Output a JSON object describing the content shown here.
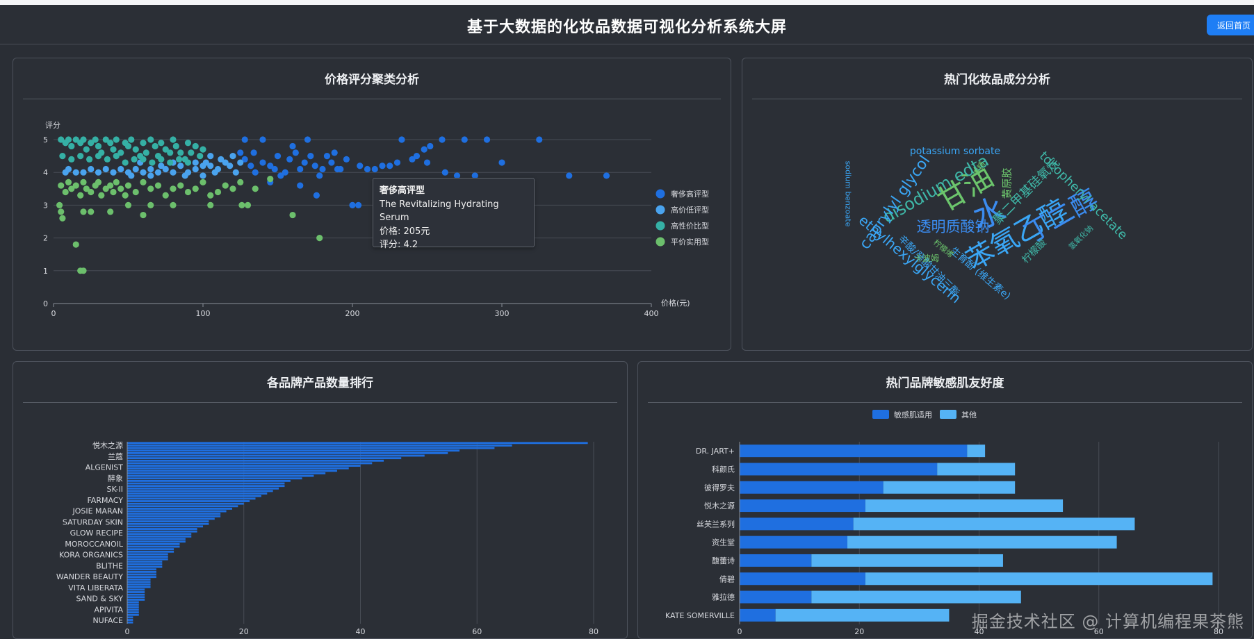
{
  "header": {
    "title": "基于大数据的化妆品数据可视化分析系统大屏",
    "home_button": "返回首页"
  },
  "panels": {
    "scatter": {
      "title": "价格评分聚类分析"
    },
    "wordcloud": {
      "title": "热门化妆品成分分析"
    },
    "brand_count": {
      "title": "各品牌产品数量排行"
    },
    "sensitive": {
      "title": "热门品牌敏感肌友好度"
    }
  },
  "tooltip": {
    "cluster": "奢侈高评型",
    "product": "The Revitalizing Hydrating Serum",
    "price": "价格: 205元",
    "rating": "评分: 4.2"
  },
  "watermark": "掘金技术社区 @ 计算机编程果茶熊",
  "wordcloud": [
    {
      "text": "水",
      "size": 46,
      "color": "#3b8cf0",
      "rotate": -20
    },
    {
      "text": "苯氧乙醇",
      "size": 40,
      "color": "#3aa6f5",
      "rotate": -30
    },
    {
      "text": "甘油",
      "size": 42,
      "color": "#6cc56c",
      "rotate": -30
    },
    {
      "text": "丁二醇",
      "size": 38,
      "color": "#3b8cf0",
      "rotate": -30
    },
    {
      "text": "disodium edta",
      "size": 24,
      "color": "#3fb8a8",
      "rotate": -30
    },
    {
      "text": "caprylyl glycol",
      "size": 22,
      "color": "#3aa6f5",
      "rotate": -55
    },
    {
      "text": "透明质酸钠",
      "size": 21,
      "color": "#3b8cf0",
      "rotate": 0
    },
    {
      "text": "ethylhexylglycerin",
      "size": 20,
      "color": "#3aa6f5",
      "rotate": 40
    },
    {
      "text": "聚二甲基硅氧烷",
      "size": 18,
      "color": "#3fb8a8",
      "rotate": -45
    },
    {
      "text": "tocopheryl acetate",
      "size": 18,
      "color": "#3fb8a8",
      "rotate": 45
    },
    {
      "text": "potassium sorbate",
      "size": 14,
      "color": "#3aa6f5",
      "rotate": 0
    },
    {
      "text": "生育酚 (维生素e)",
      "size": 14,
      "color": "#3aa6f5",
      "rotate": 40
    },
    {
      "text": "辛酸/癸酸甘油三酯",
      "size": 14,
      "color": "#3aa6f5",
      "rotate": 45
    },
    {
      "text": "黄原胶",
      "size": 15,
      "color": "#6cc56c",
      "rotate": -90
    },
    {
      "text": "柠檬酸",
      "size": 14,
      "color": "#3fb8a8",
      "rotate": -45
    },
    {
      "text": "sodium benzoate",
      "size": 11,
      "color": "#3aa6f5",
      "rotate": 90
    },
    {
      "text": "卡波姆",
      "size": 12,
      "color": "#6cc56c",
      "rotate": 0
    },
    {
      "text": "香精",
      "size": 11,
      "color": "#6cc56c",
      "rotate": -60
    },
    {
      "text": "氢氧化钠",
      "size": 11,
      "color": "#3fb8a8",
      "rotate": -45
    },
    {
      "text": "柠檬烯",
      "size": 11,
      "color": "#6cc56c",
      "rotate": 40
    }
  ],
  "chart_data": [
    {
      "type": "scatter",
      "title": "价格评分聚类分析",
      "xlabel": "价格(元)",
      "ylabel": "评分",
      "xlim": [
        0,
        400
      ],
      "ylim": [
        0,
        5
      ],
      "xticks": [
        "0",
        "100",
        "200",
        "300",
        "400"
      ],
      "yticks": [
        "0",
        "1",
        "2",
        "3",
        "4",
        "5"
      ],
      "grid": true,
      "legend_position": "right",
      "series": [
        {
          "name": "奢侈高评型",
          "color": "#1f6fe0",
          "points": [
            [
              125,
              4.6
            ],
            [
              128,
              5
            ],
            [
              132,
              4.2
            ],
            [
              135,
              4
            ],
            [
              140,
              4.3
            ],
            [
              145,
              4.2
            ],
            [
              148,
              4.1
            ],
            [
              150,
              4.5
            ],
            [
              152,
              3.9
            ],
            [
              155,
              4
            ],
            [
              158,
              4.4
            ],
            [
              162,
              4.6
            ],
            [
              165,
              4.1
            ],
            [
              168,
              4.3
            ],
            [
              170,
              5
            ],
            [
              172,
              4.5
            ],
            [
              175,
              4.2
            ],
            [
              178,
              3.9
            ],
            [
              180,
              4.1
            ],
            [
              183,
              4.5
            ],
            [
              186,
              4.3
            ],
            [
              188,
              4.6
            ],
            [
              190,
              4.1
            ],
            [
              192,
              4.1
            ],
            [
              196,
              4.4
            ],
            [
              200,
              3
            ],
            [
              204,
              3
            ],
            [
              205,
              4.2
            ],
            [
              210,
              4.1
            ],
            [
              215,
              4.1
            ],
            [
              220,
              4.2
            ],
            [
              225,
              4.2
            ],
            [
              230,
              4.3
            ],
            [
              233,
              5
            ],
            [
              240,
              4.4
            ],
            [
              243,
              4.5
            ],
            [
              248,
              4.7
            ],
            [
              250,
              4.3
            ],
            [
              252,
              4.8
            ],
            [
              260,
              5
            ],
            [
              262,
              4
            ],
            [
              270,
              3.9
            ],
            [
              275,
              5
            ],
            [
              282,
              3.9
            ],
            [
              290,
              5
            ],
            [
              300,
              4.3
            ],
            [
              325,
              5
            ],
            [
              345,
              3.9
            ],
            [
              370,
              3.9
            ],
            [
              140,
              5
            ],
            [
              160,
              4.8
            ],
            [
              165,
              3.6
            ],
            [
              145,
              3.7
            ],
            [
              176,
              3.3
            ],
            [
              128,
              4.4
            ],
            [
              134,
              4.6
            ]
          ]
        },
        {
          "name": "高价低评型",
          "color": "#4aa3ee",
          "points": [
            [
              50,
              4
            ],
            [
              55,
              4.1
            ],
            [
              60,
              4
            ],
            [
              65,
              4.1
            ],
            [
              70,
              4
            ],
            [
              75,
              4.1
            ],
            [
              80,
              4
            ],
            [
              85,
              4.2
            ],
            [
              90,
              4
            ],
            [
              95,
              4.1
            ],
            [
              100,
              4.2
            ],
            [
              102,
              4.3
            ],
            [
              105,
              4.2
            ],
            [
              108,
              4
            ],
            [
              110,
              4.1
            ],
            [
              112,
              4.4
            ],
            [
              115,
              4.3
            ],
            [
              118,
              4.2
            ],
            [
              120,
              4.5
            ],
            [
              122,
              4
            ],
            [
              125,
              4.3
            ],
            [
              105,
              4.5
            ],
            [
              100,
              3.9
            ],
            [
              95,
              4.3
            ],
            [
              88,
              3.9
            ],
            [
              80,
              4.3
            ],
            [
              72,
              4.2
            ],
            [
              65,
              3.9
            ],
            [
              58,
              4.3
            ],
            [
              52,
              3.9
            ],
            [
              45,
              4.1
            ],
            [
              40,
              4
            ],
            [
              35,
              4.1
            ],
            [
              30,
              4
            ],
            [
              25,
              4.1
            ],
            [
              20,
              4
            ],
            [
              15,
              4
            ],
            [
              10,
              4.1
            ],
            [
              8,
              4
            ]
          ]
        },
        {
          "name": "高性价比型",
          "color": "#35b0a5",
          "points": [
            [
              5,
              5
            ],
            [
              8,
              4.9
            ],
            [
              10,
              5
            ],
            [
              12,
              4.8
            ],
            [
              15,
              5
            ],
            [
              18,
              4.9
            ],
            [
              20,
              5
            ],
            [
              22,
              4.7
            ],
            [
              25,
              4.9
            ],
            [
              28,
              5
            ],
            [
              30,
              4.8
            ],
            [
              32,
              4.6
            ],
            [
              35,
              5
            ],
            [
              38,
              4.9
            ],
            [
              40,
              4.7
            ],
            [
              42,
              5
            ],
            [
              45,
              4.6
            ],
            [
              48,
              4.9
            ],
            [
              50,
              4.8
            ],
            [
              52,
              5
            ],
            [
              55,
              4.7
            ],
            [
              58,
              4.5
            ],
            [
              60,
              4.9
            ],
            [
              62,
              4.6
            ],
            [
              65,
              5
            ],
            [
              68,
              4.8
            ],
            [
              70,
              4.5
            ],
            [
              72,
              4.9
            ],
            [
              75,
              4.7
            ],
            [
              78,
              4.6
            ],
            [
              80,
              5
            ],
            [
              82,
              4.8
            ],
            [
              85,
              4.6
            ],
            [
              88,
              4.4
            ],
            [
              90,
              4.9
            ],
            [
              92,
              4.6
            ],
            [
              95,
              4.8
            ],
            [
              98,
              4.5
            ],
            [
              100,
              4.7
            ],
            [
              6,
              4.5
            ],
            [
              12,
              4.4
            ],
            [
              18,
              4.5
            ],
            [
              24,
              4.4
            ],
            [
              30,
              4.5
            ],
            [
              36,
              4.4
            ],
            [
              42,
              4.5
            ],
            [
              48,
              4.3
            ],
            [
              54,
              4.4
            ],
            [
              60,
              4.4
            ],
            [
              66,
              4.3
            ],
            [
              72,
              4.4
            ],
            [
              78,
              4.3
            ],
            [
              84,
              4.4
            ],
            [
              90,
              4.3
            ]
          ]
        },
        {
          "name": "平价实用型",
          "color": "#6cbf6c",
          "points": [
            [
              5,
              3.6
            ],
            [
              8,
              3.4
            ],
            [
              10,
              3.7
            ],
            [
              12,
              3.5
            ],
            [
              15,
              3.6
            ],
            [
              18,
              3.3
            ],
            [
              20,
              3.7
            ],
            [
              22,
              3.5
            ],
            [
              25,
              3.4
            ],
            [
              28,
              3.6
            ],
            [
              30,
              3.7
            ],
            [
              32,
              3.3
            ],
            [
              35,
              3.5
            ],
            [
              38,
              3.6
            ],
            [
              40,
              3.4
            ],
            [
              42,
              3.7
            ],
            [
              45,
              3.5
            ],
            [
              48,
              3.3
            ],
            [
              50,
              3.6
            ],
            [
              55,
              3.4
            ],
            [
              60,
              3.7
            ],
            [
              65,
              3.5
            ],
            [
              70,
              3.6
            ],
            [
              75,
              3.3
            ],
            [
              80,
              3.5
            ],
            [
              85,
              3.6
            ],
            [
              90,
              3.4
            ],
            [
              95,
              3.5
            ],
            [
              100,
              3.7
            ],
            [
              105,
              3.3
            ],
            [
              110,
              3.4
            ],
            [
              115,
              3.6
            ],
            [
              120,
              3.5
            ],
            [
              125,
              3.7
            ],
            [
              130,
              3
            ],
            [
              135,
              3.5
            ],
            [
              145,
              3.8
            ],
            [
              5,
              2.8
            ],
            [
              4,
              3
            ],
            [
              6,
              2.6
            ],
            [
              20,
              2.8
            ],
            [
              25,
              2.8
            ],
            [
              38,
              2.8
            ],
            [
              60,
              2.7
            ],
            [
              15,
              1.8
            ],
            [
              18,
              1
            ],
            [
              20,
              1
            ],
            [
              160,
              2.7
            ],
            [
              178,
              2
            ],
            [
              50,
              3
            ],
            [
              65,
              3
            ],
            [
              80,
              3
            ],
            [
              105,
              3
            ],
            [
              126,
              3
            ]
          ]
        }
      ]
    },
    {
      "type": "bar",
      "title": "各品牌产品数量排行",
      "orientation": "horizontal",
      "xlim": [
        0,
        80
      ],
      "xticks": [
        "0",
        "20",
        "40",
        "60",
        "80"
      ],
      "category_labels": [
        "悦木之源",
        "兰蔻",
        "ALGENIST",
        "醉象",
        "SK-II",
        "FARMACY",
        "JOSIE MARAN",
        "SATURDAY SKIN",
        "GLOW RECIPE",
        "MOROCCANOIL",
        "KORA ORGANICS",
        "BLITHE",
        "WANDER BEAUTY",
        "VITA LIBERATA",
        "SAND & SKY",
        "APIVITA",
        "NUFACE"
      ],
      "values": [
        79,
        66,
        63,
        57,
        55,
        51,
        47,
        44,
        42,
        40,
        38,
        36,
        34,
        32,
        30,
        28,
        27,
        27,
        26,
        25,
        24,
        23,
        22,
        21,
        20,
        19,
        18,
        17,
        16,
        16,
        15,
        14,
        14,
        13,
        12,
        12,
        11,
        11,
        10,
        10,
        9,
        9,
        8,
        8,
        7,
        7,
        7,
        6,
        6,
        6,
        5,
        5,
        5,
        5,
        4,
        4,
        4,
        4,
        3,
        3,
        3,
        3,
        3,
        2,
        2,
        2,
        2,
        2,
        2,
        1,
        1,
        1
      ]
    },
    {
      "type": "bar",
      "title": "热门品牌敏感肌友好度",
      "orientation": "horizontal",
      "stacked": true,
      "xlim": [
        0,
        80
      ],
      "xticks": [
        "0",
        "20",
        "40",
        "60",
        "80"
      ],
      "legend_position": "top",
      "categories": [
        "DR. JART+",
        "科颜氏",
        "彼得罗夫",
        "悦木之源",
        "丝芙兰系列",
        "资生堂",
        "馥蕾诗",
        "倩碧",
        "雅拉德",
        "KATE SOMERVILLE"
      ],
      "series": [
        {
          "name": "敏感肌适用",
          "color": "#1f6fe0",
          "values": [
            38,
            33,
            24,
            21,
            19,
            18,
            12,
            21,
            12,
            6
          ]
        },
        {
          "name": "其他",
          "color": "#55b3f5",
          "values": [
            3,
            13,
            22,
            33,
            47,
            45,
            32,
            58,
            35,
            29
          ]
        }
      ]
    }
  ]
}
